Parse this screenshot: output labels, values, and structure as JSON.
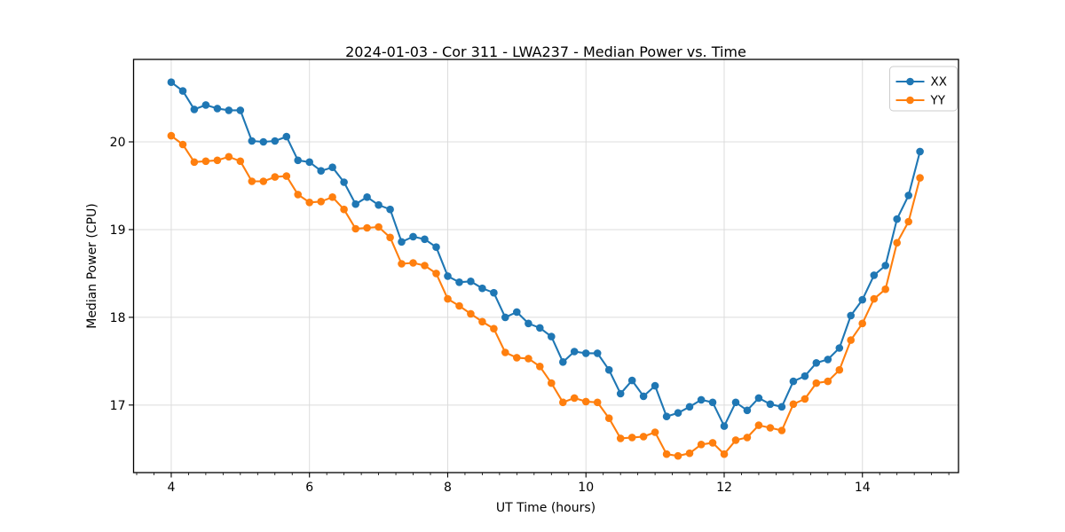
{
  "chart_data": {
    "type": "line",
    "title": "2024-01-03 - Cor 311 - LWA237 - Median Power vs. Time",
    "xlabel": "UT Time (hours)",
    "ylabel": "Median Power (CPU)",
    "xlim": [
      3.455,
      15.39
    ],
    "ylim": [
      16.23,
      20.94
    ],
    "x_ticks": [
      4,
      6,
      8,
      10,
      12,
      14
    ],
    "y_ticks": [
      17,
      18,
      19,
      20
    ],
    "x_minor_tick_step": 0.25,
    "grid": true,
    "legend": {
      "position": "upper right",
      "entries": [
        "XX",
        "YY"
      ]
    },
    "x": [
      4.0,
      4.167,
      4.333,
      4.5,
      4.667,
      4.833,
      5.0,
      5.167,
      5.333,
      5.5,
      5.667,
      5.833,
      6.0,
      6.167,
      6.333,
      6.5,
      6.667,
      6.833,
      7.0,
      7.167,
      7.333,
      7.5,
      7.667,
      7.833,
      8.0,
      8.167,
      8.333,
      8.5,
      8.667,
      8.833,
      9.0,
      9.167,
      9.333,
      9.5,
      9.667,
      9.833,
      10.0,
      10.167,
      10.333,
      10.5,
      10.667,
      10.833,
      11.0,
      11.167,
      11.333,
      11.5,
      11.667,
      11.833,
      12.0,
      12.167,
      12.333,
      12.5,
      12.667,
      12.833,
      13.0,
      13.167,
      13.333,
      13.5,
      13.667,
      13.833,
      14.0,
      14.167,
      14.333,
      14.5,
      14.667,
      14.833
    ],
    "series": [
      {
        "name": "XX",
        "color": "#1f77b4",
        "marker": "circle",
        "values": [
          20.68,
          20.58,
          20.37,
          20.42,
          20.38,
          20.36,
          20.36,
          20.01,
          20.0,
          20.01,
          20.06,
          19.79,
          19.77,
          19.67,
          19.71,
          19.54,
          19.29,
          19.37,
          19.28,
          19.23,
          18.86,
          18.92,
          18.89,
          18.8,
          18.47,
          18.4,
          18.41,
          18.33,
          18.28,
          18.0,
          18.06,
          17.93,
          17.88,
          17.78,
          17.49,
          17.61,
          17.59,
          17.59,
          17.4,
          17.13,
          17.28,
          17.1,
          17.22,
          16.87,
          16.91,
          16.98,
          17.06,
          17.03,
          16.76,
          17.03,
          16.94,
          17.08,
          17.01,
          16.98,
          17.27,
          17.33,
          17.48,
          17.52,
          17.65,
          18.02,
          18.2,
          18.48,
          18.59,
          19.12,
          19.39,
          19.89
        ]
      },
      {
        "name": "YY",
        "color": "#ff7f0e",
        "marker": "circle",
        "values": [
          20.07,
          19.97,
          19.77,
          19.78,
          19.79,
          19.83,
          19.78,
          19.55,
          19.55,
          19.6,
          19.61,
          19.4,
          19.31,
          19.32,
          19.37,
          19.23,
          19.01,
          19.02,
          19.03,
          18.91,
          18.61,
          18.62,
          18.59,
          18.5,
          18.21,
          18.13,
          18.04,
          17.95,
          17.87,
          17.6,
          17.54,
          17.53,
          17.44,
          17.25,
          17.03,
          17.08,
          17.04,
          17.03,
          16.85,
          16.62,
          16.63,
          16.64,
          16.69,
          16.44,
          16.42,
          16.45,
          16.55,
          16.57,
          16.44,
          16.6,
          16.63,
          16.77,
          16.74,
          16.71,
          17.01,
          17.07,
          17.25,
          17.27,
          17.4,
          17.74,
          17.93,
          18.21,
          18.32,
          18.85,
          19.09,
          19.59
        ]
      }
    ]
  },
  "style": {
    "background": "#ffffff",
    "grid_color": "#dcdcdc",
    "spine_color": "#000000",
    "tick_color": "#000000",
    "legend_border": "#cccccc",
    "legend_background": "#ffffff"
  }
}
